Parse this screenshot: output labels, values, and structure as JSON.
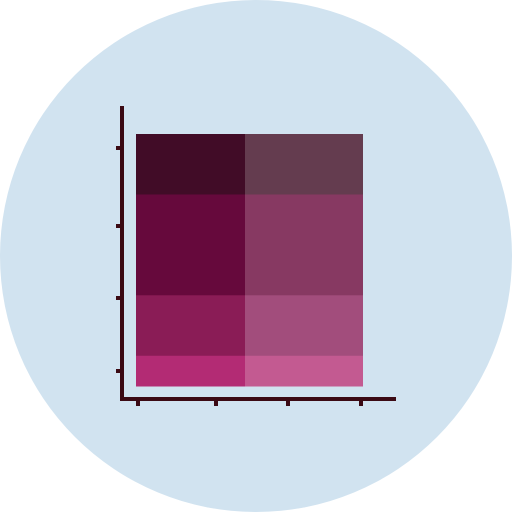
{
  "icon": {
    "name": "stacked-bar-chart-icon",
    "colors": {
      "background_circle": "#D1E3F0",
      "axis": "#3B0A14",
      "column_left": [
        "#410C27",
        "#66093C",
        "#8A1C56",
        "#B32B74"
      ],
      "column_right": [
        "#643C4F",
        "#873962",
        "#A24D7C",
        "#C35A91"
      ]
    },
    "segments_top_to_bottom": [
      {
        "left_share": 0.24,
        "right_share": 0.24
      },
      {
        "left_share": 0.4,
        "right_share": 0.4
      },
      {
        "left_share": 0.24,
        "right_share": 0.24
      },
      {
        "left_share": 0.12,
        "right_share": 0.12
      }
    ]
  }
}
